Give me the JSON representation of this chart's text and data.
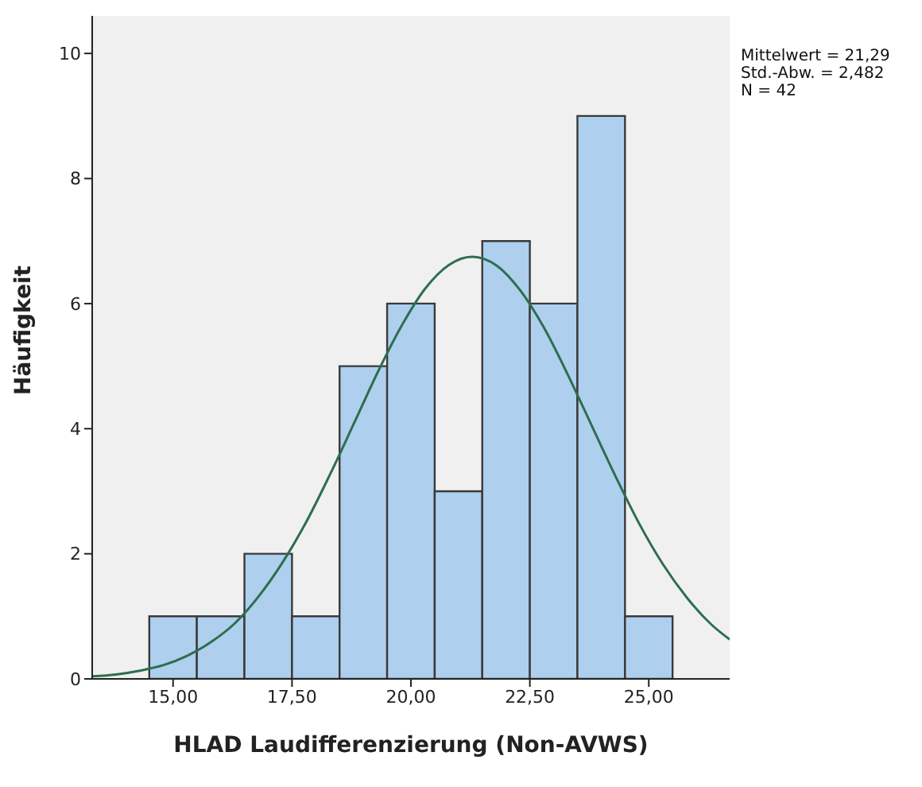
{
  "chart_data": {
    "type": "histogram",
    "xlabel": "HLAD Laudifferenzierung (Non-AVWS)",
    "ylabel": "Häufigkeit",
    "bins": [
      14.5,
      15.5,
      16.5,
      17.5,
      18.5,
      19.5,
      20.5,
      21.5,
      22.5,
      23.5,
      24.5,
      25.5
    ],
    "series": [
      {
        "color": "#aecfee",
        "values": [
          1,
          1,
          2,
          1,
          5,
          6,
          3,
          7,
          6,
          9,
          1
        ]
      },
      {
        "type": "line",
        "color": "#2e6e4e",
        "x": [
          13.3,
          13.8,
          14.3,
          14.8,
          15.3,
          15.8,
          16.3,
          16.8,
          17.3,
          17.8,
          18.3,
          18.8,
          19.3,
          19.8,
          20.3,
          20.8,
          21.29,
          21.8,
          22.3,
          22.8,
          23.3,
          23.8,
          24.3,
          24.8,
          25.3,
          25.8,
          26.3,
          26.7
        ],
        "values": [
          0.04,
          0.07,
          0.13,
          0.22,
          0.37,
          0.59,
          0.89,
          1.32,
          1.86,
          2.51,
          3.27,
          4.08,
          4.9,
          5.64,
          6.24,
          6.62,
          6.75,
          6.61,
          6.21,
          5.61,
          4.86,
          4.05,
          3.24,
          2.48,
          1.83,
          1.3,
          0.88,
          0.63
        ]
      }
    ],
    "xlim": [
      13.3,
      26.7
    ],
    "ylim": [
      0,
      10.6
    ],
    "xticks": [
      {
        "value": 15,
        "label": "15,00"
      },
      {
        "value": 17.5,
        "label": "17,50"
      },
      {
        "value": 20,
        "label": "20,00"
      },
      {
        "value": 22.5,
        "label": "22,50"
      },
      {
        "value": 25,
        "label": "25,00"
      }
    ],
    "yticks": [
      0,
      2,
      4,
      6,
      8,
      10
    ],
    "grid": false,
    "marker": "none",
    "annotations": [
      "Mittelwert = 21,29",
      "Std.-Abw. = 2,482",
      "N = 42"
    ]
  }
}
